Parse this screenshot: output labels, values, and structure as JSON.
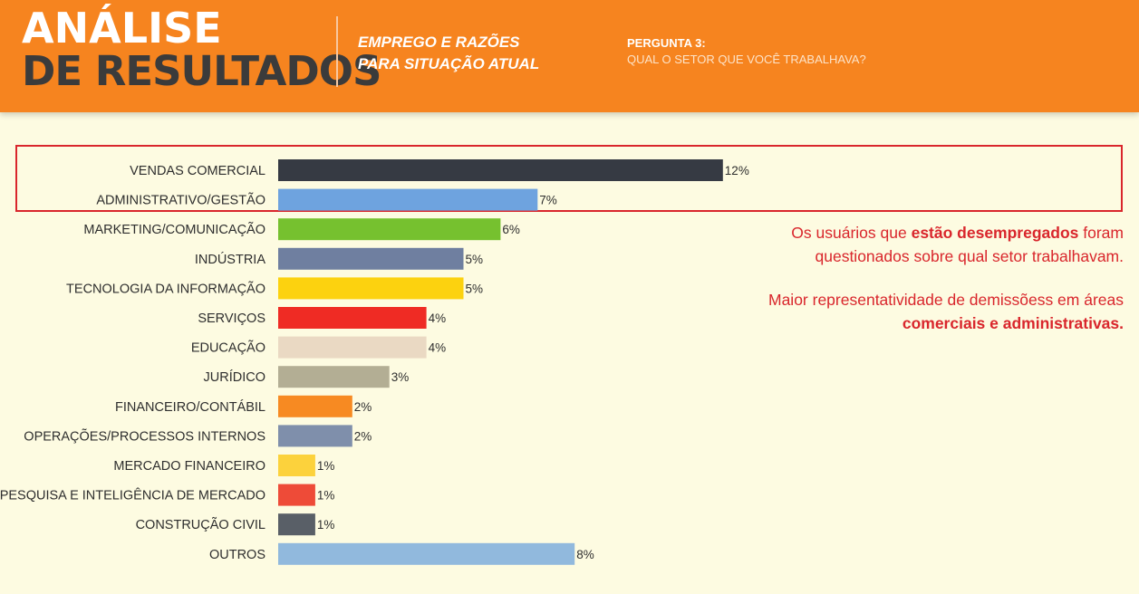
{
  "header": {
    "title_line1": "ANÁLISE",
    "title_line2": "DE RESULTADOS",
    "subtitle_line1": "EMPREGO E RAZÕES",
    "subtitle_line2": "PARA SITUAÇÃO ATUAL",
    "question_number": "PERGUNTA 3:",
    "question_text": "QUAL O SETOR QUE VOCÊ TRABALHAVA?"
  },
  "note": {
    "p1_before": "Os usuários que ",
    "p1_bold": "estão desempregados",
    "p1_after": " foram questionados sobre qual setor trabalhavam.",
    "p2_before": "Maior representatividade de demissõess em áreas ",
    "p2_bold": "comerciais e administrativas."
  },
  "colors": {
    "header_bg": "#f6841f",
    "background": "#fdfbe1",
    "accent_red": "#d9262c"
  },
  "chart_data": {
    "type": "bar",
    "orientation": "horizontal",
    "categories": [
      "VENDAS COMERCIAL",
      "ADMINISTRATIVO/GESTÃO",
      "MARKETING/COMUNICAÇÃO",
      "INDÚSTRIA",
      "TECNOLOGIA DA INFORMAÇÃO",
      "SERVIÇOS",
      "EDUCAÇÃO",
      "JURÍDICO",
      "FINANCEIRO/CONTÁBIL",
      "OPERAÇÕES/PROCESSOS INTERNOS",
      "MERCADO FINANCEIRO",
      "PESQUISA E INTELIGÊNCIA DE MERCADO",
      "CONSTRUÇÃO CIVIL",
      "OUTROS"
    ],
    "values": [
      12,
      7,
      6,
      5,
      5,
      4,
      4,
      3,
      2,
      2,
      1,
      1,
      1,
      8
    ],
    "data_labels": [
      "12%",
      "7%",
      "6%",
      "5%",
      "5%",
      "4%",
      "4%",
      "3%",
      "2%",
      "2%",
      "1%",
      "1%",
      "1%",
      "8%"
    ],
    "bar_colors": [
      "#363a43",
      "#6ea3df",
      "#76c12f",
      "#6f7fa0",
      "#fcd20f",
      "#ef2b24",
      "#ead9c3",
      "#b3ae94",
      "#f78a22",
      "#7f8fab",
      "#fcd23c",
      "#ee4b38",
      "#595f67",
      "#91b9dd"
    ],
    "unit": "%",
    "highlighted_categories": [
      "VENDAS COMERCIAL",
      "ADMINISTRATIVO/GESTÃO"
    ]
  }
}
